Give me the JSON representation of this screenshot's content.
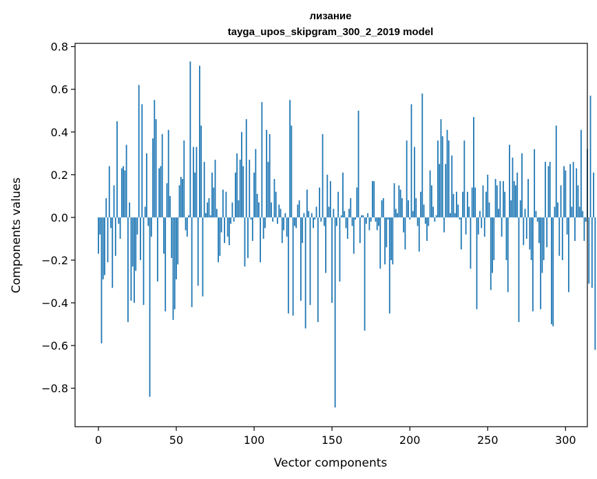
{
  "chart_data": {
    "type": "bar",
    "title": "лизание",
    "subtitle": "tayga_upos_skipgram_300_2_2019 model",
    "xlabel": "Vector components",
    "ylabel": "Components values",
    "xlim": [
      -15,
      314
    ],
    "ylim": [
      -0.98,
      0.815
    ],
    "xticks": [
      0,
      50,
      100,
      150,
      200,
      250,
      300
    ],
    "yticks": [
      -0.8,
      -0.6,
      -0.4,
      -0.2,
      0.0,
      0.2,
      0.4,
      0.6,
      0.8
    ],
    "ytick_labels": [
      "−0.8",
      "−0.6",
      "−0.4",
      "−0.2",
      "0.0",
      "0.2",
      "0.4",
      "0.6",
      "0.8"
    ],
    "bar_color": "#1f77b4",
    "values": [
      -0.17,
      -0.08,
      -0.59,
      -0.29,
      -0.27,
      0.09,
      -0.21,
      0.24,
      -0.05,
      -0.33,
      0.15,
      -0.18,
      0.45,
      -0.03,
      -0.1,
      0.23,
      0.24,
      0.22,
      0.34,
      -0.49,
      0.07,
      -0.39,
      -0.23,
      -0.4,
      -0.25,
      -0.08,
      0.62,
      -0.2,
      0.53,
      -0.41,
      0.05,
      0.3,
      -0.04,
      -0.84,
      -0.09,
      0.37,
      0.55,
      0.46,
      -0.3,
      0.23,
      0.24,
      0.39,
      -0.17,
      -0.44,
      0.16,
      0.41,
      0.1,
      -0.19,
      -0.48,
      -0.43,
      -0.29,
      -0.22,
      0.15,
      0.19,
      0.18,
      0.36,
      -0.06,
      -0.09,
      0.01,
      0.73,
      -0.42,
      0.33,
      0.21,
      0.33,
      -0.32,
      0.71,
      0.43,
      -0.37,
      0.26,
      0.02,
      0.07,
      0.09,
      0.01,
      0.21,
      0.14,
      0.27,
      0.04,
      -0.21,
      -0.18,
      -0.07,
      0.13,
      -0.12,
      0.12,
      -0.09,
      -0.13,
      -0.03,
      0.07,
      -0.02,
      0.21,
      0.3,
      0.08,
      0.27,
      0.4,
      0.24,
      -0.23,
      0.46,
      -0.19,
      0.27,
      -0.01,
      -0.11,
      0.21,
      0.32,
      0.11,
      0.07,
      -0.21,
      0.54,
      -0.1,
      -0.05,
      0.41,
      0.26,
      0.39,
      0.07,
      -0.02,
      0.18,
      0.12,
      -0.03,
      0.06,
      0.04,
      -0.12,
      -0.06,
      0.02,
      -0.09,
      -0.45,
      0.55,
      0.43,
      -0.46,
      -0.04,
      -0.05,
      0.06,
      0.08,
      -0.39,
      -0.12,
      0.02,
      -0.52,
      0.13,
      0.03,
      -0.41,
      0.02,
      -0.05,
      -0.01,
      0.05,
      -0.49,
      0.14,
      -0.02,
      0.39,
      -0.04,
      -0.26,
      0.2,
      0.05,
      0.17,
      -0.4,
      0.04,
      -0.89,
      -0.04,
      0.12,
      -0.3,
      0.01,
      0.21,
      0.03,
      -0.05,
      -0.1,
      0.04,
      0.09,
      -0.04,
      -0.17,
      -0.01,
      0.14,
      0.5,
      -0.12,
      0.01,
      0.01,
      -0.53,
      -0.03,
      0.02,
      -0.06,
      -0.02,
      0.17,
      0.17,
      -0.02,
      -0.06,
      -0.04,
      -0.24,
      0.08,
      0.09,
      -0.22,
      -0.14,
      -0.01,
      -0.45,
      -0.2,
      -0.22,
      0.16,
      0.04,
      0.02,
      0.15,
      0.13,
      0.09,
      -0.07,
      -0.15,
      0.36,
      0.08,
      -0.01,
      0.53,
      0.03,
      0.33,
      0.09,
      -0.04,
      -0.16,
      0.12,
      0.58,
      0.06,
      -0.03,
      -0.11,
      -0.04,
      0.22,
      0.15,
      0.05,
      -0.02,
      0.01,
      0.36,
      0.25,
      0.46,
      0.38,
      -0.07,
      0.25,
      0.41,
      0.36,
      0.02,
      0.29,
      0.11,
      0.02,
      0.12,
      0.06,
      -0.01,
      -0.15,
      0.12,
      0.36,
      -0.08,
      0.12,
      0.05,
      -0.24,
      0.14,
      0.47,
      0.14,
      -0.43,
      -0.08,
      0.03,
      -0.05,
      0.15,
      -0.09,
      0.12,
      0.2,
      0.07,
      -0.34,
      -0.26,
      -0.2,
      0.18,
      0.15,
      0.04,
      0.17,
      -0.09,
      0.17,
      0.12,
      -0.2,
      -0.35,
      0.34,
      0.08,
      0.28,
      0.17,
      0.15,
      0.21,
      -0.49,
      0.08,
      0.3,
      -0.13,
      0.04,
      -0.1,
      0.18,
      -0.15,
      -0.2,
      -0.44,
      0.32,
      0.03,
      -0.02,
      -0.12,
      -0.43,
      -0.26,
      -0.2,
      0.26,
      -0.14,
      0.24,
      0.26,
      -0.5,
      -0.51,
      0.05,
      0.43,
      0.07,
      -0.18,
      0.15,
      -0.2,
      0.24,
      0.22,
      -0.08,
      -0.35,
      0.25,
      0.05,
      0.26,
      -0.11,
      0.23,
      0.15,
      0.05,
      0.41,
      0.03,
      -0.11,
      -0.02,
      0.32,
      -0.31,
      0.57,
      -0.33,
      0.21,
      -0.62
    ]
  }
}
